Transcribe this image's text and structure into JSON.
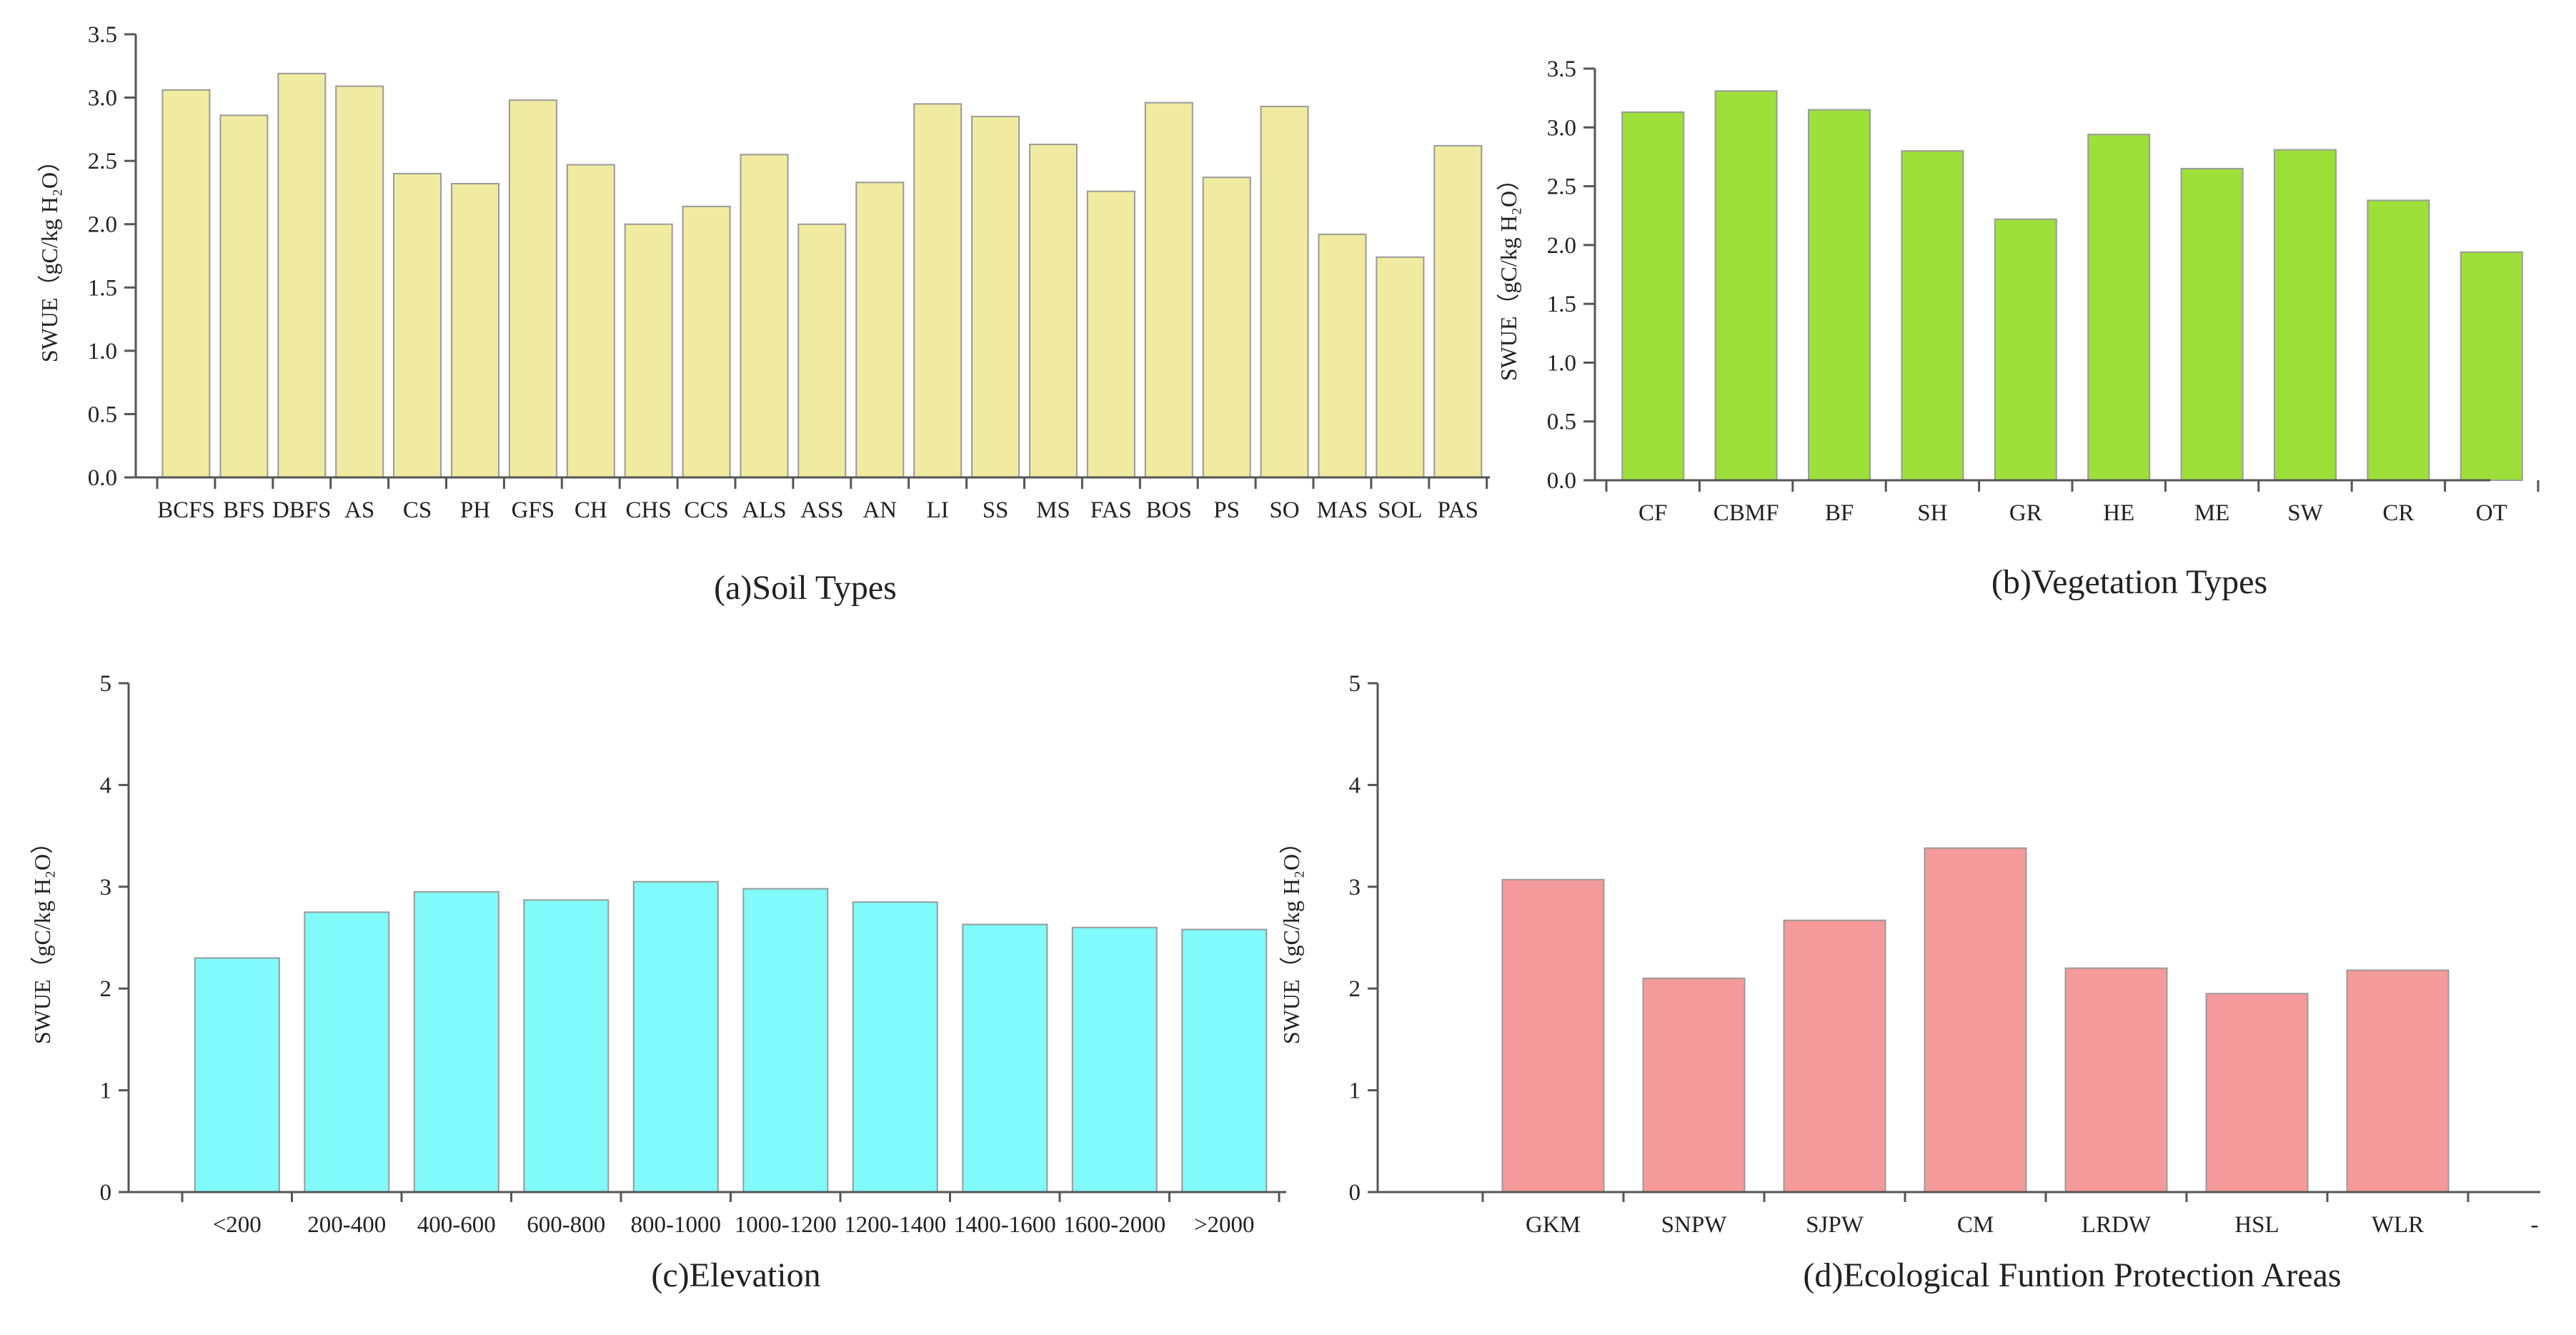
{
  "chart_data": [
    {
      "id": "soil",
      "type": "bar",
      "caption": "(a)Soil Types",
      "ylabel": "SWUE（gC/kg H₂O）",
      "ylim": [
        0,
        3.5
      ],
      "yticks": [
        "0.0",
        "0.5",
        "1.0",
        "1.5",
        "2.0",
        "2.5",
        "3.0",
        "3.5"
      ],
      "color": "#F0EBA0",
      "categories": [
        "BCFS",
        "BFS",
        "DBFS",
        "AS",
        "CS",
        "PH",
        "GFS",
        "CH",
        "CHS",
        "CCS",
        "ALS",
        "ASS",
        "AN",
        "LI",
        "SS",
        "MS",
        "FAS",
        "BOS",
        "PS",
        "SO",
        "MAS",
        "SOL",
        "PAS"
      ],
      "values": [
        3.06,
        2.86,
        3.19,
        3.09,
        2.4,
        2.32,
        2.98,
        2.47,
        2.0,
        2.14,
        2.55,
        2.0,
        2.33,
        2.95,
        2.85,
        2.63,
        2.26,
        2.96,
        2.37,
        2.93,
        1.92,
        1.74,
        2.62
      ]
    },
    {
      "id": "vegetation",
      "type": "bar",
      "caption": "(b)Vegetation Types",
      "ylabel": "SWUE（gC/kg H₂O）",
      "ylim": [
        0,
        3.5
      ],
      "yticks": [
        "0.0",
        "0.5",
        "1.0",
        "1.5",
        "2.0",
        "2.5",
        "3.0",
        "3.5"
      ],
      "color": "#9EE03A",
      "categories": [
        "CF",
        "CBMF",
        "BF",
        "SH",
        "GR",
        "HE",
        "ME",
        "SW",
        "CR",
        "OT"
      ],
      "values": [
        3.13,
        3.31,
        3.15,
        2.8,
        2.22,
        2.94,
        2.65,
        2.81,
        2.38,
        1.94
      ]
    },
    {
      "id": "elevation",
      "type": "bar",
      "caption": "(c)Elevation",
      "ylabel": "SWUE（gC/kg H₂O）",
      "ylim": [
        0,
        5
      ],
      "yticks": [
        "0",
        "1",
        "2",
        "3",
        "4",
        "5"
      ],
      "color": "#80FAFA",
      "categories": [
        "<200",
        "200-400",
        "400-600",
        "600-800",
        "800-1000",
        "1000-1200",
        "1200-1400",
        "1400-1600",
        "1600-2000",
        ">2000"
      ],
      "values": [
        2.3,
        2.75,
        2.95,
        2.87,
        3.05,
        2.98,
        2.85,
        2.63,
        2.6,
        2.58
      ]
    },
    {
      "id": "ecological",
      "type": "bar",
      "caption": "(d)Ecological Funtion Protection Areas",
      "ylabel": "SWUE（gC/kg H₂O）",
      "ylim": [
        0,
        5
      ],
      "yticks": [
        "0",
        "1",
        "2",
        "3",
        "4",
        "5"
      ],
      "color": "#F59A9A",
      "categories": [
        "GKM",
        "SNPW",
        "SJPW",
        "CM",
        "LRDW",
        "HSL",
        "WLR"
      ],
      "trailing_label": "-",
      "values": [
        3.07,
        2.1,
        2.67,
        3.38,
        2.2,
        1.95,
        2.18
      ]
    }
  ]
}
